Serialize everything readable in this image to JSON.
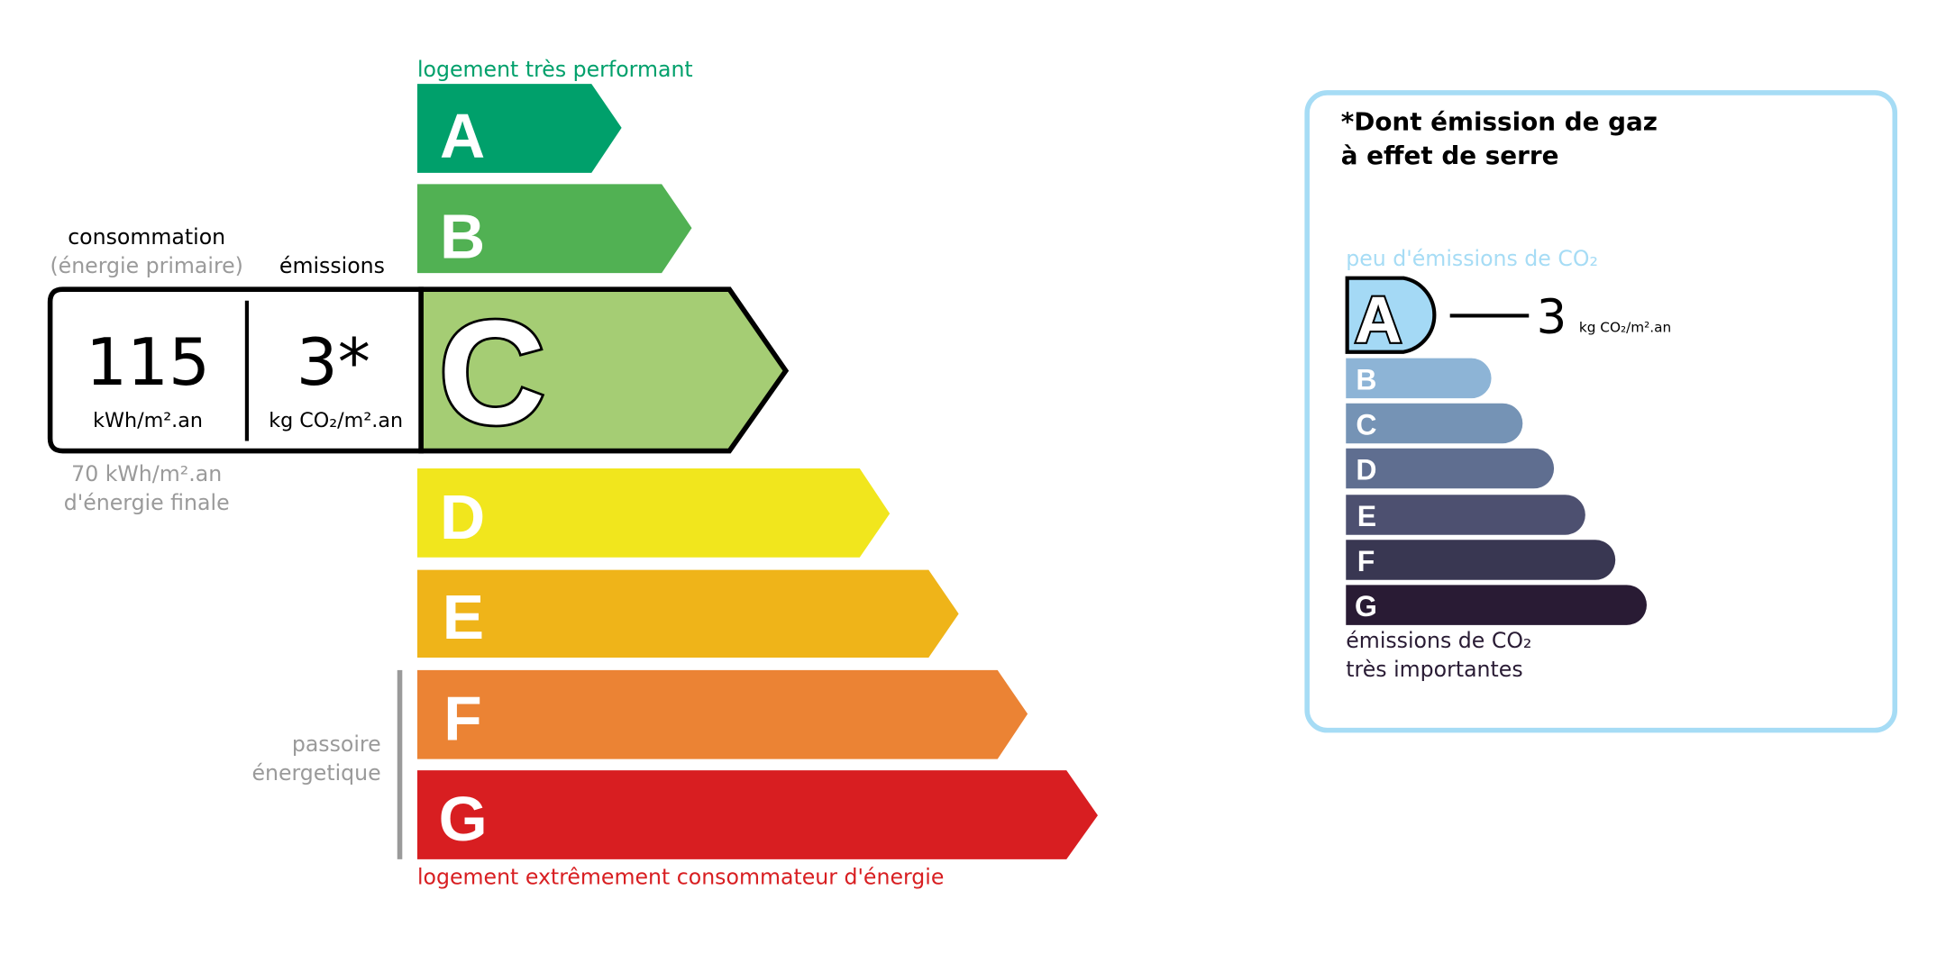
{
  "energy": {
    "top_label": "logement très performant",
    "bottom_label": "logement extrêmement consommateur d'énergie",
    "current_class": "C",
    "classes": [
      {
        "letter": "A",
        "color": "#00a06b"
      },
      {
        "letter": "B",
        "color": "#51b153"
      },
      {
        "letter": "C",
        "color": "#a5cd74"
      },
      {
        "letter": "D",
        "color": "#f1e61d"
      },
      {
        "letter": "E",
        "color": "#efb419"
      },
      {
        "letter": "F",
        "color": "#eb8334"
      },
      {
        "letter": "G",
        "color": "#d81e21"
      }
    ],
    "top_label_color": "#00a06b",
    "bottom_label_color": "#d81e21",
    "passoire_line1": "passoire",
    "passoire_line2": "énergetique"
  },
  "reading": {
    "consumption_title": "consommation",
    "consumption_subtitle": "(énergie primaire)",
    "emissions_title": "émissions",
    "consumption_value": "115",
    "consumption_unit": "kWh/m².an",
    "emissions_value": "3*",
    "emissions_unit": "kg CO₂/m².an",
    "final_energy_value": "70 kWh/m².an",
    "final_energy_label": "d'énergie finale"
  },
  "ghg": {
    "title_line1": "*Dont émission de gaz",
    "title_line2": "à effet de serre",
    "top_label": "peu d'émissions de CO₂",
    "bottom_label_line1": "émissions de CO₂",
    "bottom_label_line2": "très importantes",
    "current_class": "A",
    "value": "3",
    "unit": "kg CO₂/m².an",
    "border_color": "#a6dcf5",
    "classes": [
      {
        "letter": "A",
        "color": "#a4d9f5"
      },
      {
        "letter": "B",
        "color": "#8db4d6"
      },
      {
        "letter": "C",
        "color": "#7593b5"
      },
      {
        "letter": "D",
        "color": "#5f6e90"
      },
      {
        "letter": "E",
        "color": "#4d5070"
      },
      {
        "letter": "F",
        "color": "#393752"
      },
      {
        "letter": "G",
        "color": "#291b34"
      }
    ]
  }
}
